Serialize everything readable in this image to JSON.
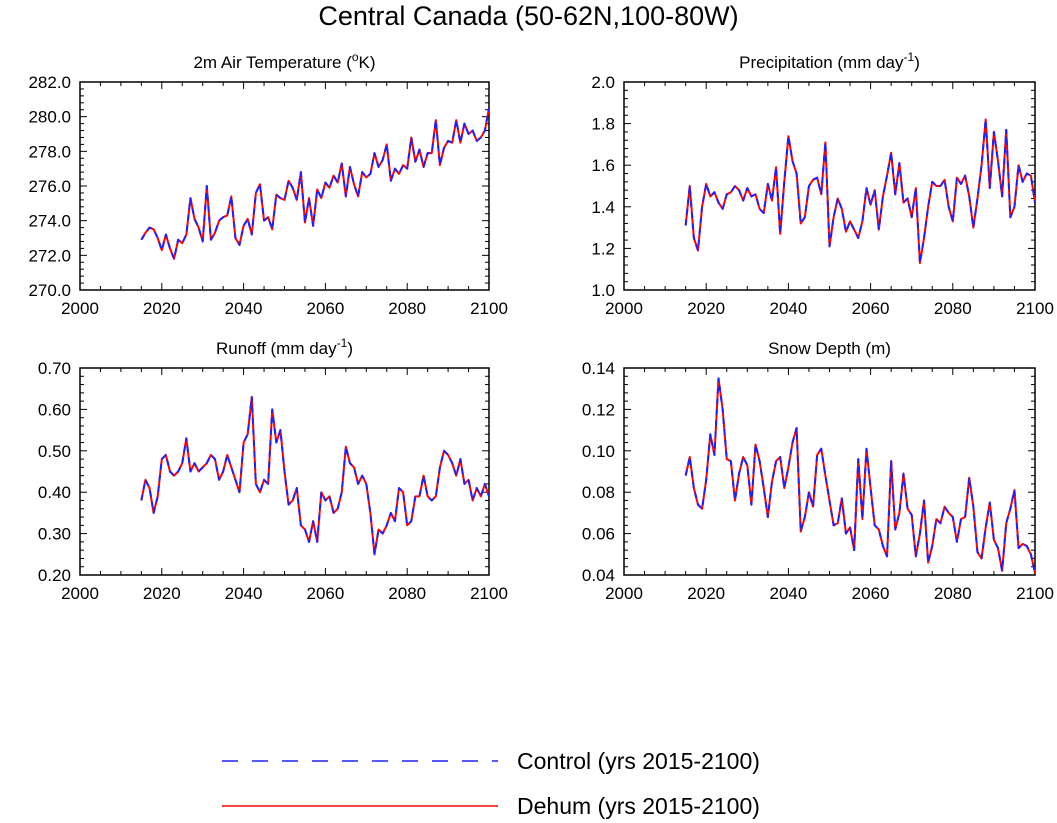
{
  "figure": {
    "title": "Central Canada (50-62N,100-80W)"
  },
  "legend": [
    {
      "label": "Control (yrs 2015-2100)",
      "color": "#2020ff",
      "style": "dashed"
    },
    {
      "label": "Dehum (yrs 2015-2100)",
      "color": "#ff0000",
      "style": "solid"
    }
  ],
  "chart_data": [
    {
      "type": "line",
      "title": "2m Air Temperature (oK)",
      "title_parts": {
        "text": "2m Air Temperature (",
        "sup": "o",
        "after": "K)"
      },
      "xlim": [
        2000,
        2100
      ],
      "ylim": [
        270,
        282
      ],
      "xticks": [
        2000,
        2020,
        2040,
        2060,
        2080,
        2100
      ],
      "yticks": [
        270,
        272,
        274,
        276,
        278,
        280,
        282
      ],
      "ytick_labels": [
        "270.0",
        "272.0",
        "274.0",
        "276.0",
        "278.0",
        "280.0",
        "282.0"
      ],
      "x_start": 2015,
      "series": [
        {
          "name": "Control (yrs 2015-2100)",
          "values": [
            272.9,
            273.3,
            273.6,
            273.5,
            273.0,
            272.3,
            273.2,
            272.4,
            271.8,
            272.9,
            272.7,
            273.2,
            275.3,
            274.1,
            273.6,
            272.8,
            276.0,
            272.9,
            273.3,
            274.0,
            274.2,
            274.3,
            275.4,
            273.0,
            272.6,
            273.7,
            274.1,
            273.2,
            275.6,
            276.1,
            274.0,
            274.2,
            273.5,
            275.5,
            275.3,
            275.2,
            276.3,
            275.9,
            275.2,
            276.8,
            273.9,
            275.3,
            273.7,
            275.8,
            275.3,
            276.2,
            275.9,
            276.6,
            276.2,
            277.3,
            275.4,
            277.1,
            276.1,
            275.4,
            276.8,
            276.5,
            276.7,
            277.9,
            277.1,
            277.5,
            278.4,
            276.3,
            277.0,
            276.7,
            277.2,
            277.0,
            278.8,
            277.4,
            278.1,
            277.1,
            277.9,
            277.9,
            279.8,
            277.2,
            278.2,
            278.6,
            278.5,
            279.8,
            278.5,
            279.6,
            279.0,
            279.2,
            278.6,
            278.8,
            279.2,
            280.5
          ]
        },
        {
          "name": "Dehum (yrs 2015-2100)",
          "values": [
            272.9,
            273.3,
            273.6,
            273.5,
            273.0,
            272.3,
            273.2,
            272.4,
            271.8,
            272.9,
            272.7,
            273.2,
            275.3,
            274.1,
            273.6,
            272.8,
            276.0,
            272.9,
            273.3,
            274.0,
            274.2,
            274.3,
            275.4,
            273.0,
            272.6,
            273.7,
            274.1,
            273.2,
            275.6,
            276.1,
            274.0,
            274.2,
            273.5,
            275.5,
            275.3,
            275.2,
            276.3,
            275.9,
            275.2,
            276.8,
            273.9,
            275.3,
            273.7,
            275.8,
            275.3,
            276.2,
            275.9,
            276.6,
            276.2,
            277.3,
            275.4,
            277.1,
            276.1,
            275.4,
            276.8,
            276.5,
            276.7,
            277.9,
            277.1,
            277.5,
            278.4,
            276.3,
            277.0,
            276.7,
            277.2,
            277.0,
            278.8,
            277.4,
            278.1,
            277.1,
            277.9,
            277.9,
            279.8,
            277.2,
            278.2,
            278.6,
            278.5,
            279.8,
            278.5,
            279.6,
            279.0,
            279.2,
            278.6,
            278.8,
            279.2,
            280.5
          ]
        }
      ]
    },
    {
      "type": "line",
      "title": "Precipitation (mm day-1)",
      "title_parts": {
        "text": "Precipitation (mm day",
        "sup": "-1",
        "after": ")"
      },
      "xlim": [
        2000,
        2100
      ],
      "ylim": [
        1.0,
        2.0
      ],
      "xticks": [
        2000,
        2020,
        2040,
        2060,
        2080,
        2100
      ],
      "yticks": [
        1.0,
        1.2,
        1.4,
        1.6,
        1.8,
        2.0
      ],
      "ytick_labels": [
        "1.0",
        "1.2",
        "1.4",
        "1.6",
        "1.8",
        "2.0"
      ],
      "x_start": 2015,
      "series": [
        {
          "name": "Control (yrs 2015-2100)",
          "values": [
            1.31,
            1.5,
            1.25,
            1.19,
            1.4,
            1.51,
            1.45,
            1.47,
            1.42,
            1.39,
            1.46,
            1.47,
            1.5,
            1.48,
            1.43,
            1.49,
            1.45,
            1.46,
            1.39,
            1.37,
            1.51,
            1.43,
            1.59,
            1.27,
            1.52,
            1.74,
            1.62,
            1.56,
            1.32,
            1.35,
            1.5,
            1.53,
            1.54,
            1.46,
            1.71,
            1.21,
            1.35,
            1.44,
            1.39,
            1.28,
            1.33,
            1.29,
            1.25,
            1.33,
            1.49,
            1.41,
            1.48,
            1.29,
            1.45,
            1.55,
            1.66,
            1.46,
            1.61,
            1.42,
            1.44,
            1.35,
            1.49,
            1.13,
            1.25,
            1.4,
            1.52,
            1.5,
            1.5,
            1.53,
            1.4,
            1.33,
            1.54,
            1.51,
            1.55,
            1.45,
            1.3,
            1.44,
            1.6,
            1.82,
            1.49,
            1.76,
            1.62,
            1.45,
            1.77,
            1.35,
            1.4,
            1.6,
            1.52,
            1.56,
            1.55,
            1.42
          ]
        },
        {
          "name": "Dehum (yrs 2015-2100)",
          "values": [
            1.31,
            1.5,
            1.25,
            1.19,
            1.4,
            1.51,
            1.45,
            1.47,
            1.42,
            1.39,
            1.46,
            1.47,
            1.5,
            1.48,
            1.43,
            1.49,
            1.45,
            1.46,
            1.39,
            1.37,
            1.51,
            1.43,
            1.59,
            1.27,
            1.52,
            1.74,
            1.62,
            1.56,
            1.32,
            1.35,
            1.5,
            1.53,
            1.54,
            1.46,
            1.71,
            1.21,
            1.35,
            1.44,
            1.39,
            1.28,
            1.33,
            1.29,
            1.25,
            1.33,
            1.49,
            1.41,
            1.48,
            1.29,
            1.45,
            1.55,
            1.66,
            1.46,
            1.61,
            1.42,
            1.44,
            1.35,
            1.49,
            1.13,
            1.25,
            1.4,
            1.52,
            1.5,
            1.5,
            1.53,
            1.4,
            1.33,
            1.54,
            1.51,
            1.55,
            1.45,
            1.3,
            1.44,
            1.6,
            1.82,
            1.49,
            1.76,
            1.62,
            1.45,
            1.77,
            1.35,
            1.4,
            1.6,
            1.52,
            1.56,
            1.55,
            1.42
          ]
        }
      ]
    },
    {
      "type": "line",
      "title": "Runoff (mm day-1)",
      "title_parts": {
        "text": "Runoff (mm day",
        "sup": "-1",
        "after": ")"
      },
      "xlim": [
        2000,
        2100
      ],
      "ylim": [
        0.2,
        0.7
      ],
      "xticks": [
        2000,
        2020,
        2040,
        2060,
        2080,
        2100
      ],
      "yticks": [
        0.2,
        0.3,
        0.4,
        0.5,
        0.6,
        0.7
      ],
      "ytick_labels": [
        "0.20",
        "0.30",
        "0.40",
        "0.50",
        "0.60",
        "0.70"
      ],
      "x_start": 2015,
      "series": [
        {
          "name": "Control (yrs 2015-2100)",
          "values": [
            0.38,
            0.43,
            0.41,
            0.35,
            0.39,
            0.48,
            0.49,
            0.45,
            0.44,
            0.45,
            0.47,
            0.53,
            0.45,
            0.47,
            0.45,
            0.46,
            0.47,
            0.49,
            0.48,
            0.43,
            0.45,
            0.49,
            0.46,
            0.43,
            0.4,
            0.52,
            0.54,
            0.63,
            0.42,
            0.4,
            0.43,
            0.42,
            0.6,
            0.52,
            0.55,
            0.45,
            0.37,
            0.38,
            0.41,
            0.32,
            0.31,
            0.28,
            0.33,
            0.28,
            0.4,
            0.38,
            0.39,
            0.35,
            0.36,
            0.4,
            0.51,
            0.47,
            0.46,
            0.42,
            0.44,
            0.42,
            0.35,
            0.25,
            0.31,
            0.3,
            0.32,
            0.35,
            0.33,
            0.41,
            0.4,
            0.32,
            0.33,
            0.39,
            0.39,
            0.44,
            0.39,
            0.38,
            0.39,
            0.46,
            0.5,
            0.49,
            0.47,
            0.44,
            0.48,
            0.42,
            0.43,
            0.38,
            0.41,
            0.39,
            0.42,
            0.39
          ]
        },
        {
          "name": "Dehum (yrs 2015-2100)",
          "values": [
            0.38,
            0.43,
            0.41,
            0.35,
            0.39,
            0.48,
            0.49,
            0.45,
            0.44,
            0.45,
            0.47,
            0.53,
            0.45,
            0.47,
            0.45,
            0.46,
            0.47,
            0.49,
            0.48,
            0.43,
            0.45,
            0.49,
            0.46,
            0.43,
            0.4,
            0.52,
            0.54,
            0.63,
            0.42,
            0.4,
            0.43,
            0.42,
            0.6,
            0.52,
            0.55,
            0.45,
            0.37,
            0.38,
            0.41,
            0.32,
            0.31,
            0.28,
            0.33,
            0.28,
            0.4,
            0.38,
            0.39,
            0.35,
            0.36,
            0.4,
            0.51,
            0.47,
            0.46,
            0.42,
            0.44,
            0.42,
            0.35,
            0.25,
            0.31,
            0.3,
            0.32,
            0.35,
            0.33,
            0.41,
            0.4,
            0.32,
            0.33,
            0.39,
            0.39,
            0.44,
            0.39,
            0.38,
            0.39,
            0.46,
            0.5,
            0.49,
            0.47,
            0.44,
            0.48,
            0.42,
            0.43,
            0.38,
            0.41,
            0.39,
            0.42,
            0.39
          ]
        }
      ]
    },
    {
      "type": "line",
      "title": "Snow Depth (m)",
      "title_parts": {
        "text": "Snow Depth (m)",
        "sup": "",
        "after": ""
      },
      "xlim": [
        2000,
        2100
      ],
      "ylim": [
        0.04,
        0.14
      ],
      "xticks": [
        2000,
        2020,
        2040,
        2060,
        2080,
        2100
      ],
      "yticks": [
        0.04,
        0.06,
        0.08,
        0.1,
        0.12,
        0.14
      ],
      "ytick_labels": [
        "0.04",
        "0.06",
        "0.08",
        "0.10",
        "0.12",
        "0.14"
      ],
      "x_start": 2015,
      "series": [
        {
          "name": "Control (yrs 2015-2100)",
          "values": [
            0.088,
            0.097,
            0.082,
            0.074,
            0.072,
            0.086,
            0.108,
            0.098,
            0.135,
            0.12,
            0.096,
            0.095,
            0.076,
            0.089,
            0.097,
            0.093,
            0.074,
            0.103,
            0.095,
            0.082,
            0.068,
            0.085,
            0.095,
            0.097,
            0.082,
            0.092,
            0.104,
            0.111,
            0.061,
            0.068,
            0.08,
            0.073,
            0.098,
            0.101,
            0.088,
            0.076,
            0.064,
            0.065,
            0.077,
            0.06,
            0.063,
            0.052,
            0.096,
            0.067,
            0.101,
            0.082,
            0.064,
            0.062,
            0.054,
            0.049,
            0.095,
            0.062,
            0.07,
            0.089,
            0.072,
            0.069,
            0.049,
            0.06,
            0.076,
            0.046,
            0.054,
            0.067,
            0.065,
            0.073,
            0.07,
            0.068,
            0.056,
            0.067,
            0.068,
            0.087,
            0.073,
            0.051,
            0.048,
            0.063,
            0.075,
            0.057,
            0.053,
            0.042,
            0.065,
            0.072,
            0.081,
            0.053,
            0.055,
            0.054,
            0.05,
            0.041
          ]
        },
        {
          "name": "Dehum (yrs 2015-2100)",
          "values": [
            0.088,
            0.097,
            0.082,
            0.074,
            0.072,
            0.086,
            0.108,
            0.098,
            0.135,
            0.12,
            0.096,
            0.095,
            0.076,
            0.089,
            0.097,
            0.093,
            0.074,
            0.103,
            0.095,
            0.082,
            0.068,
            0.085,
            0.095,
            0.097,
            0.082,
            0.092,
            0.104,
            0.111,
            0.061,
            0.068,
            0.08,
            0.073,
            0.098,
            0.101,
            0.088,
            0.076,
            0.064,
            0.065,
            0.077,
            0.06,
            0.063,
            0.052,
            0.096,
            0.067,
            0.101,
            0.082,
            0.064,
            0.062,
            0.054,
            0.049,
            0.095,
            0.062,
            0.07,
            0.089,
            0.072,
            0.069,
            0.049,
            0.06,
            0.076,
            0.046,
            0.054,
            0.067,
            0.065,
            0.073,
            0.07,
            0.068,
            0.056,
            0.067,
            0.068,
            0.087,
            0.073,
            0.051,
            0.048,
            0.063,
            0.075,
            0.057,
            0.053,
            0.042,
            0.065,
            0.072,
            0.081,
            0.053,
            0.055,
            0.054,
            0.05,
            0.041
          ]
        }
      ]
    }
  ]
}
